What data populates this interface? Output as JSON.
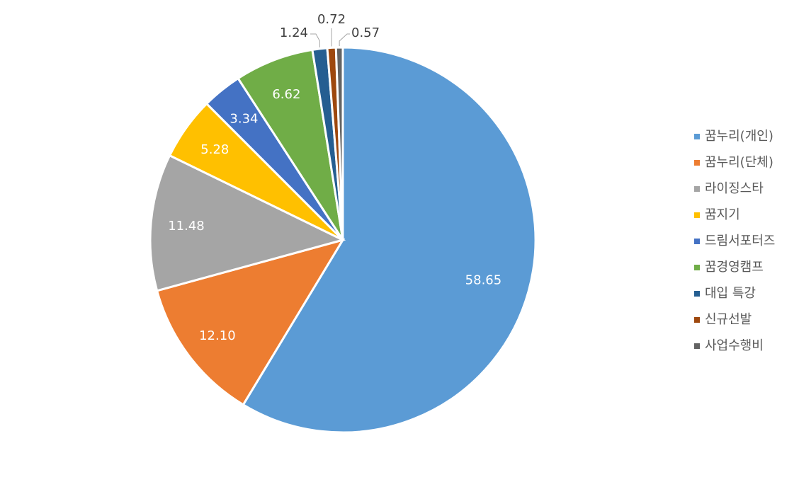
{
  "chart_data": {
    "type": "pie",
    "title": "",
    "start_angle_deg": 0,
    "direction": "clockwise",
    "legend_position": "right",
    "categories": [
      "꿈누리(개인)",
      "꿈누리(단체)",
      "라이징스타",
      "꿈지기",
      "드림서포터즈",
      "꿈경영캠프",
      "대입 특강",
      "신규선발",
      "사업수행비"
    ],
    "values": [
      58.65,
      12.1,
      11.48,
      5.28,
      3.34,
      6.62,
      1.24,
      0.72,
      0.57
    ],
    "labels": [
      "58.65",
      "12.10",
      "11.48",
      "5.28",
      "3.34",
      "6.62",
      "1.24",
      "0.72",
      "0.57"
    ],
    "colors": [
      "#5B9BD5",
      "#ED7D31",
      "#A5A5A5",
      "#FFC000",
      "#4472C4",
      "#70AD47",
      "#255E91",
      "#9E480E",
      "#636363"
    ]
  }
}
